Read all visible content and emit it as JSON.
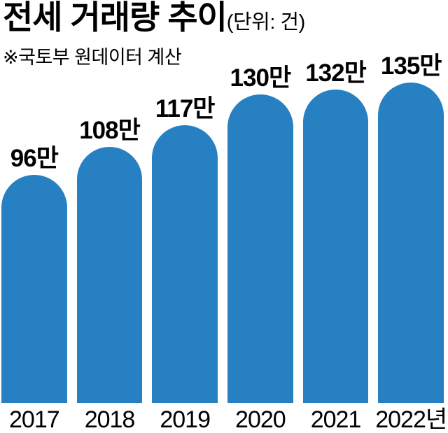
{
  "header": {
    "title": "전세 거래량 추이",
    "unit": "(단위: 건)",
    "note": "※국토부 원데이터 계산"
  },
  "chart_data": {
    "type": "bar",
    "title": "전세 거래량 추이",
    "unit_note": "(단위: 건)",
    "source_note": "※국토부 원데이터 계산",
    "categories": [
      "2017",
      "2018",
      "2019",
      "2020",
      "2021",
      "2022년"
    ],
    "values": [
      96,
      108,
      117,
      130,
      132,
      135
    ],
    "value_unit": "만 건",
    "value_labels": [
      "96만",
      "108만",
      "117만",
      "130만",
      "132만",
      "135만"
    ],
    "bar_color": "#2680c2",
    "text_color": "#000000",
    "ylim": [
      0,
      135
    ],
    "grid": false,
    "legend": "none",
    "bar_top_style": "rounded-dome"
  }
}
